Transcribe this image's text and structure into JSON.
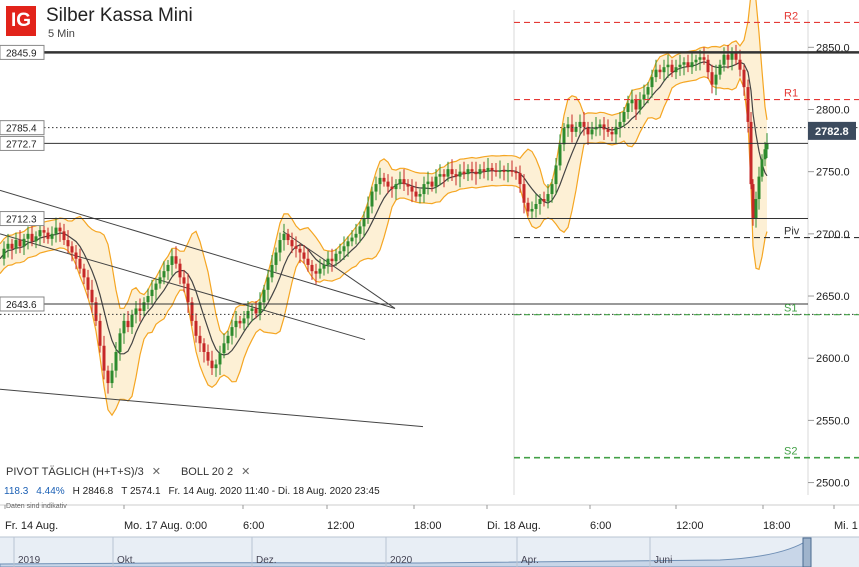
{
  "header": {
    "logo_text": "IG",
    "title": "Silber Kassa Mini",
    "interval": "5 Min"
  },
  "indicators": {
    "pivot_label": "PIVOT  TÄGLICH  (H+T+S)/3",
    "boll_label": "BOLL  20  2",
    "close_icon": "close-icon"
  },
  "stats": {
    "change": "118.3",
    "change_pct": "4.44%",
    "high": "H 2846.8",
    "low": "T 2574.1",
    "range": "Fr. 14 Aug. 2020 11:40 - Di. 18 Aug. 2020 23:45"
  },
  "note": "Daten sind indikativ",
  "colors": {
    "up": "#2e8b2e",
    "down": "#c62828",
    "bollinger": "#f5a623",
    "band_fill": "#fdf0d5",
    "resistance": "#e53935",
    "support": "#43a047",
    "price_tag": "#3c4b5e"
  },
  "chart_data": {
    "type": "candlestick",
    "ylim": [
      2490,
      2880
    ],
    "yticks": [
      2500,
      2550,
      2600,
      2650,
      2700,
      2750,
      2800,
      2850
    ],
    "ytick_labels": [
      "2500.0",
      "2550.0",
      "2600.0",
      "2650.0",
      "2700.0",
      "2750.0",
      "2800.0",
      "2850.0"
    ],
    "xtick_labels": [
      "Fr. 14 Aug.",
      "Mo. 17 Aug. 0:00",
      "6:00",
      "12:00",
      "18:00",
      "Di. 18 Aug.",
      "6:00",
      "12:00",
      "18:00",
      "Mi. 1"
    ],
    "current_price": "2782.8",
    "pivots": [
      {
        "name": "R2",
        "value": 2870
      },
      {
        "name": "R1",
        "value": 2808
      },
      {
        "name": "Piv",
        "value": 2697
      },
      {
        "name": "S1",
        "value": 2635
      },
      {
        "name": "S2",
        "value": 2520
      }
    ],
    "price_lines": [
      {
        "label": "2845.9",
        "value": 2845.9,
        "style": "thick"
      },
      {
        "label": "2785.4",
        "value": 2785.4,
        "style": "dotted"
      },
      {
        "label": "2772.7",
        "value": 2772.7,
        "style": "solid"
      },
      {
        "label": "2712.3",
        "value": 2712.3,
        "style": "solid"
      },
      {
        "label": "2643.6",
        "value": 2643.6,
        "style": "solid"
      },
      {
        "label": "",
        "value": 2635.2,
        "style": "dotted"
      }
    ],
    "price_series": [
      [
        0,
        2680
      ],
      [
        4,
        2688
      ],
      [
        8,
        2692
      ],
      [
        12,
        2688
      ],
      [
        16,
        2695
      ],
      [
        20,
        2690
      ],
      [
        24,
        2696
      ],
      [
        28,
        2700
      ],
      [
        32,
        2694
      ],
      [
        36,
        2698
      ],
      [
        40,
        2703
      ],
      [
        44,
        2701
      ],
      [
        48,
        2696
      ],
      [
        52,
        2700
      ],
      [
        56,
        2705
      ],
      [
        60,
        2702
      ],
      [
        64,
        2695
      ],
      [
        68,
        2690
      ],
      [
        72,
        2685
      ],
      [
        76,
        2680
      ],
      [
        80,
        2672
      ],
      [
        84,
        2665
      ],
      [
        88,
        2655
      ],
      [
        92,
        2645
      ],
      [
        96,
        2630
      ],
      [
        100,
        2610
      ],
      [
        104,
        2590
      ],
      [
        108,
        2580
      ],
      [
        112,
        2590
      ],
      [
        116,
        2605
      ],
      [
        120,
        2620
      ],
      [
        124,
        2630
      ],
      [
        128,
        2625
      ],
      [
        132,
        2635
      ],
      [
        136,
        2640
      ],
      [
        140,
        2638
      ],
      [
        144,
        2645
      ],
      [
        148,
        2650
      ],
      [
        152,
        2655
      ],
      [
        156,
        2660
      ],
      [
        160,
        2665
      ],
      [
        164,
        2670
      ],
      [
        168,
        2675
      ],
      [
        172,
        2682
      ],
      [
        176,
        2676
      ],
      [
        180,
        2665
      ],
      [
        184,
        2660
      ],
      [
        188,
        2645
      ],
      [
        192,
        2630
      ],
      [
        196,
        2618
      ],
      [
        200,
        2612
      ],
      [
        204,
        2605
      ],
      [
        208,
        2598
      ],
      [
        212,
        2592
      ],
      [
        216,
        2595
      ],
      [
        220,
        2604
      ],
      [
        224,
        2612
      ],
      [
        228,
        2618
      ],
      [
        232,
        2625
      ],
      [
        236,
        2630
      ],
      [
        240,
        2628
      ],
      [
        244,
        2632
      ],
      [
        248,
        2638
      ],
      [
        252,
        2640
      ],
      [
        256,
        2636
      ],
      [
        260,
        2645
      ],
      [
        264,
        2655
      ],
      [
        268,
        2665
      ],
      [
        272,
        2675
      ],
      [
        276,
        2685
      ],
      [
        280,
        2695
      ],
      [
        284,
        2700
      ],
      [
        288,
        2695
      ],
      [
        292,
        2690
      ],
      [
        296,
        2688
      ],
      [
        300,
        2685
      ],
      [
        304,
        2680
      ],
      [
        308,
        2675
      ],
      [
        312,
        2670
      ],
      [
        316,
        2668
      ],
      [
        320,
        2672
      ],
      [
        324,
        2675
      ],
      [
        328,
        2680
      ],
      [
        332,
        2678
      ],
      [
        336,
        2684
      ],
      [
        340,
        2686
      ],
      [
        344,
        2690
      ],
      [
        348,
        2694
      ],
      [
        352,
        2697
      ],
      [
        356,
        2700
      ],
      [
        360,
        2706
      ],
      [
        364,
        2712
      ],
      [
        368,
        2722
      ],
      [
        372,
        2734
      ],
      [
        376,
        2740
      ],
      [
        380,
        2745
      ],
      [
        384,
        2742
      ],
      [
        388,
        2738
      ],
      [
        392,
        2736
      ],
      [
        396,
        2740
      ],
      [
        400,
        2744
      ],
      [
        404,
        2740
      ],
      [
        408,
        2738
      ],
      [
        412,
        2734
      ],
      [
        416,
        2730
      ],
      [
        420,
        2732
      ],
      [
        424,
        2740
      ],
      [
        428,
        2742
      ],
      [
        432,
        2738
      ],
      [
        436,
        2746
      ],
      [
        440,
        2748
      ],
      [
        444,
        2746
      ],
      [
        448,
        2752
      ],
      [
        452,
        2748
      ],
      [
        456,
        2746
      ],
      [
        460,
        2750
      ],
      [
        464,
        2748
      ],
      [
        468,
        2752
      ],
      [
        472,
        2750
      ],
      [
        476,
        2748
      ],
      [
        480,
        2752
      ],
      [
        484,
        2750
      ],
      [
        488,
        2753
      ],
      [
        492,
        2751
      ],
      [
        496,
        2750
      ],
      [
        500,
        2751
      ],
      [
        504,
        2750
      ],
      [
        508,
        2751
      ],
      [
        512,
        2750
      ],
      [
        516,
        2749
      ],
      [
        520,
        2740
      ],
      [
        524,
        2725
      ],
      [
        528,
        2718
      ],
      [
        532,
        2720
      ],
      [
        536,
        2724
      ],
      [
        540,
        2728
      ],
      [
        544,
        2726
      ],
      [
        548,
        2732
      ],
      [
        552,
        2740
      ],
      [
        556,
        2755
      ],
      [
        560,
        2772
      ],
      [
        564,
        2785
      ],
      [
        568,
        2788
      ],
      [
        572,
        2782
      ],
      [
        576,
        2786
      ],
      [
        580,
        2790
      ],
      [
        584,
        2786
      ],
      [
        588,
        2780
      ],
      [
        592,
        2784
      ],
      [
        596,
        2786
      ],
      [
        600,
        2788
      ],
      [
        604,
        2784
      ],
      [
        608,
        2782
      ],
      [
        612,
        2780
      ],
      [
        616,
        2786
      ],
      [
        620,
        2790
      ],
      [
        624,
        2798
      ],
      [
        628,
        2805
      ],
      [
        632,
        2808
      ],
      [
        636,
        2800
      ],
      [
        640,
        2808
      ],
      [
        644,
        2812
      ],
      [
        648,
        2818
      ],
      [
        652,
        2826
      ],
      [
        656,
        2832
      ],
      [
        660,
        2830
      ],
      [
        664,
        2834
      ],
      [
        668,
        2836
      ],
      [
        672,
        2830
      ],
      [
        676,
        2834
      ],
      [
        680,
        2836
      ],
      [
        684,
        2838
      ],
      [
        688,
        2834
      ],
      [
        692,
        2838
      ],
      [
        696,
        2840
      ],
      [
        700,
        2842
      ],
      [
        704,
        2840
      ],
      [
        708,
        2830
      ],
      [
        712,
        2820
      ],
      [
        716,
        2828
      ],
      [
        720,
        2836
      ],
      [
        724,
        2844
      ],
      [
        728,
        2840
      ],
      [
        732,
        2846
      ],
      [
        736,
        2840
      ],
      [
        740,
        2832
      ],
      [
        744,
        2818
      ],
      [
        748,
        2790
      ],
      [
        751,
        2740
      ],
      [
        753,
        2712
      ],
      [
        756,
        2728
      ],
      [
        759,
        2746
      ],
      [
        762,
        2760
      ],
      [
        765,
        2768
      ],
      [
        767,
        2773
      ]
    ],
    "trend_lines": [
      {
        "from": [
          0,
          2735
        ],
        "to": [
          395,
          2640
        ]
      },
      {
        "from": [
          0,
          2700
        ],
        "to": [
          365,
          2615
        ]
      },
      {
        "from": [
          0,
          2575
        ],
        "to": [
          423,
          2545
        ]
      },
      {
        "from": [
          283,
          2702
        ],
        "to": [
          395,
          2640
        ]
      }
    ]
  }
}
